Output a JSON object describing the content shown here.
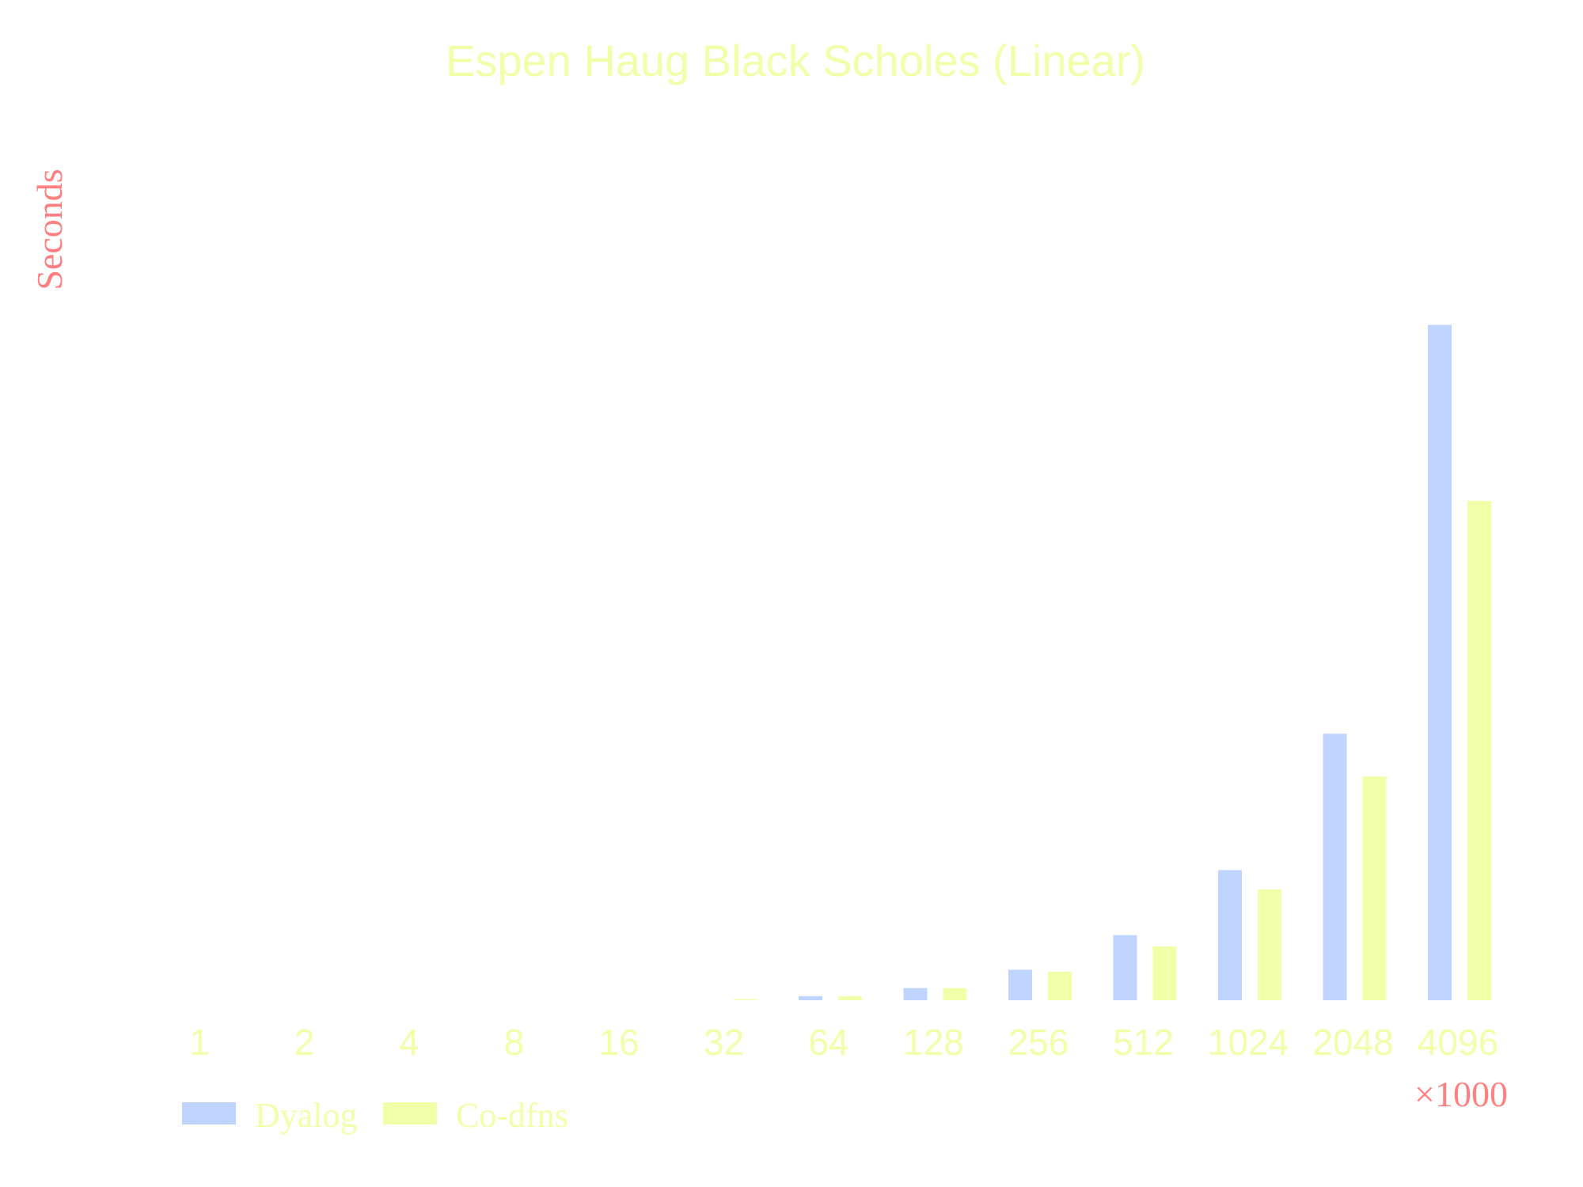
{
  "chart_data": {
    "type": "bar",
    "title": "Espen Haug Black Scholes (Linear)",
    "xlabel": "",
    "ylabel": "Seconds",
    "x_unit_label": "×1000",
    "categories": [
      "1",
      "2",
      "4",
      "8",
      "16",
      "32",
      "64",
      "128",
      "256",
      "512",
      "1024",
      "2048",
      "4096"
    ],
    "series": [
      {
        "name": "Dyalog",
        "values": [
          0.0,
          0.0,
          0.0,
          0.0,
          0.0,
          0.0,
          0.04,
          0.12,
          0.3,
          0.64,
          1.28,
          2.62,
          6.64
        ]
      },
      {
        "name": "Co-dfns",
        "values": [
          0.0,
          0.0,
          0.0,
          0.0,
          0.0,
          0.01,
          0.04,
          0.12,
          0.28,
          0.53,
          1.09,
          2.2,
          4.91
        ]
      }
    ],
    "ylim": [
      0,
      7.5
    ],
    "y_ticks_visible": false,
    "grid": false,
    "legend_position": "bottom-left",
    "colors": {
      "Dyalog": "#bfd4ff",
      "Co-dfns": "#f0ffa8",
      "title": "#f0ffa8",
      "ylabel": "#ff8080",
      "tick_labels": "#f0ffa8",
      "unit_label": "#ff8080",
      "legend_text": "#f0ffa8"
    }
  }
}
